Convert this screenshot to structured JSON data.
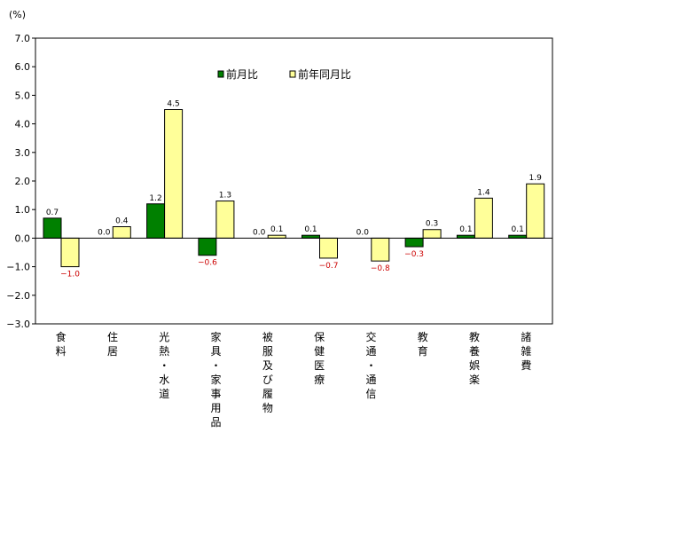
{
  "chart_data": {
    "type": "bar",
    "unit_label": "(%)",
    "categories": [
      "食料",
      "住居",
      "光熱・水道",
      "家具・家事用品",
      "被服及び履物",
      "保健医療",
      "交通・通信",
      "教育",
      "教養娯楽",
      "諸雑費"
    ],
    "series": [
      {
        "name": "前月比",
        "color": "#008000",
        "values": [
          0.7,
          0.0,
          1.2,
          -0.6,
          0.0,
          0.1,
          0.0,
          -0.3,
          0.1,
          0.1
        ],
        "labels": [
          "0.7",
          "0.0",
          "1.2",
          "−0.6",
          "0.0",
          "0.1",
          "0.0",
          "−0.3",
          "0.1",
          "0.1"
        ]
      },
      {
        "name": "前年同月比",
        "color": "#ffff99",
        "values": [
          -1.0,
          0.4,
          4.5,
          1.3,
          0.1,
          -0.7,
          -0.8,
          0.3,
          1.4,
          1.9
        ],
        "labels": [
          "−1.0",
          "0.4",
          "4.5",
          "1.3",
          "0.1",
          "−0.7",
          "−0.8",
          "0.3",
          "1.4",
          "1.9"
        ]
      }
    ],
    "y_ticks": [
      {
        "value": 7.0,
        "label": "7.0"
      },
      {
        "value": 6.0,
        "label": "6.0"
      },
      {
        "value": 5.0,
        "label": "5.0"
      },
      {
        "value": 4.0,
        "label": "4.0"
      },
      {
        "value": 3.0,
        "label": "3.0"
      },
      {
        "value": 2.0,
        "label": "2.0"
      },
      {
        "value": 1.0,
        "label": "1.0"
      },
      {
        "value": 0.0,
        "label": "0.0"
      },
      {
        "value": -1.0,
        "label": "−1.0"
      },
      {
        "value": -2.0,
        "label": "−2.0"
      },
      {
        "value": -3.0,
        "label": "−3.0"
      }
    ],
    "ylim": [
      -3.0,
      7.0
    ],
    "grid": false,
    "legend_position": "top-center",
    "negative_label_color": "#cc0000"
  }
}
